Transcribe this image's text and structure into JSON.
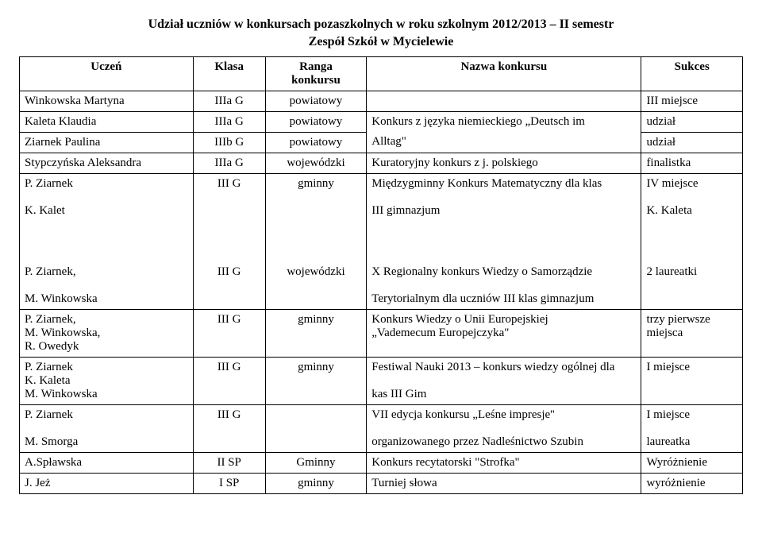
{
  "title_line1": "Udział uczniów w konkursach pozaszkolnych w roku szkolnym 2012/2013 – II semestr",
  "title_line2": "Zespół Szkół w Mycielewie",
  "headers": {
    "student": "Uczeń",
    "class": "Klasa",
    "rank1": "Ranga",
    "rank2": "konkursu",
    "name": "Nazwa konkursu",
    "success": "Sukces"
  },
  "r1": {
    "student": "Winkowska Martyna",
    "class": "IIIa G",
    "rank": "powiatowy",
    "name": "",
    "success": "III miejsce"
  },
  "r2": {
    "student": "Kaleta Klaudia",
    "class": "IIIa G",
    "rank": "powiatowy",
    "name1": "Konkurs z języka niemieckiego „Deutsch im",
    "success": "udział"
  },
  "r3": {
    "student": "Ziarnek Paulina",
    "class": "IIIb G",
    "rank": "powiatowy",
    "name2": "Alltag\"",
    "success": "udział"
  },
  "r4": {
    "student": "Stypczyńska Aleksandra",
    "class": "IIIa G",
    "rank": "wojewódzki",
    "name": "Kuratoryjny konkurs z j. polskiego",
    "success": "finalistka"
  },
  "r5": {
    "student1": "P. Ziarnek",
    "student2": "K. Kalet",
    "class": "III G",
    "rank": "gminny",
    "name1": "Międzygminny Konkurs Matematyczny dla klas",
    "name2": "III gimnazjum",
    "success1": "IV miejsce",
    "success2": "K. Kaleta"
  },
  "r6": {
    "student1": "P. Ziarnek,",
    "student2": "M. Winkowska",
    "class": "III G",
    "rank": "wojewódzki",
    "name1": "X Regionalny konkurs Wiedzy o Samorządzie",
    "name2": "Terytorialnym dla uczniów III klas gimnazjum",
    "success": "2 laureatki"
  },
  "r7": {
    "student1": "P. Ziarnek,",
    "student2": "M. Winkowska,",
    "student3": "R. Owedyk",
    "class": "III G",
    "rank": "gminny",
    "name1": "Konkurs Wiedzy o Unii Europejskiej",
    "name2": "„Vademecum Europejczyka\"",
    "success1": "trzy pierwsze",
    "success2": "miejsca"
  },
  "r8": {
    "student1": "P. Ziarnek",
    "student2": "K. Kaleta",
    "student3": "M. Winkowska",
    "class": "III G",
    "rank": "gminny",
    "name1": "Festiwal Nauki 2013 – konkurs wiedzy ogólnej dla",
    "name2": "kas III Gim",
    "success": "I miejsce"
  },
  "r9": {
    "student1": "P. Ziarnek",
    "student2": "M. Smorga",
    "class": "III G",
    "rank": "",
    "name1": "VII edycja konkursu „Leśne impresje''",
    "name2": "organizowanego przez Nadleśnictwo Szubin",
    "success1": "I miejsce",
    "success2": "laureatka"
  },
  "r10": {
    "student": "A.Spławska",
    "class": "II SP",
    "rank": "Gminny",
    "name": "Konkurs recytatorski \"Strofka\"",
    "success": "Wyróżnienie"
  },
  "r11": {
    "student": "J. Jeż",
    "class": "I SP",
    "rank": "gminny",
    "name": "Turniej słowa",
    "success": "wyróżnienie"
  }
}
